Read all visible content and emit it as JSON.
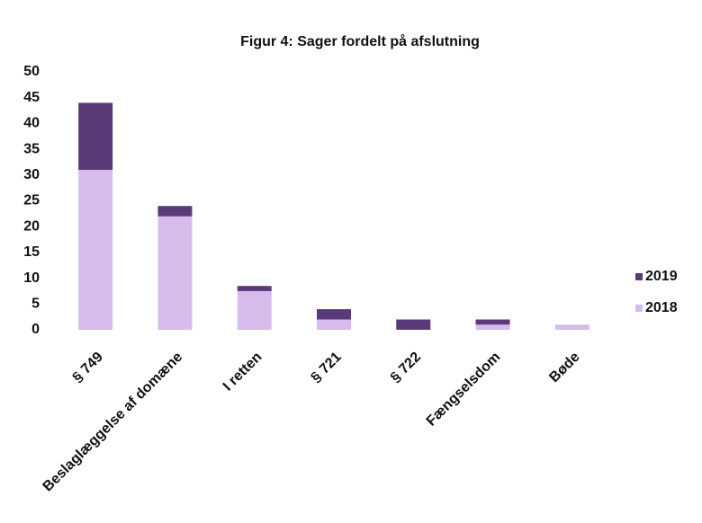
{
  "chart_data": {
    "type": "stacked_bar",
    "title": "Figur 4: Sager fordelt på afslutning",
    "categories": [
      "§ 749",
      "Beslaglæggelse af domæne",
      "I retten",
      "§ 721",
      "§ 722",
      "Fængselsdom",
      "Bøde"
    ],
    "series": [
      {
        "name": "2018",
        "color": "#d6bceb",
        "values": [
          31,
          22,
          7.5,
          2,
          0,
          1,
          1
        ]
      },
      {
        "name": "2019",
        "color": "#5b3a7a",
        "values": [
          13,
          2,
          1,
          2,
          2,
          1,
          0
        ]
      }
    ],
    "ylim": [
      0,
      50
    ],
    "yticks": [
      0,
      5,
      10,
      15,
      20,
      25,
      30,
      35,
      40,
      45,
      50
    ],
    "legend": "right"
  }
}
